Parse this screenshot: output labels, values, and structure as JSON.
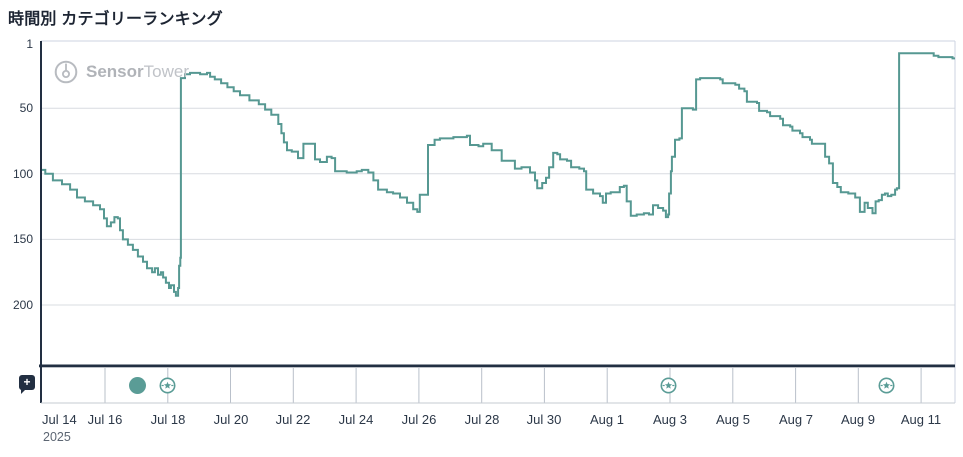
{
  "page": {
    "title": "時間別 カテゴリーランキング"
  },
  "watermark": {
    "brand_bold": "Sensor",
    "brand_regular": "Tower"
  },
  "colors": {
    "line": "#569892",
    "icon_teal": "#5a9c96",
    "axis_dark": "#222f42",
    "grid": "#d8dce1",
    "border_light": "#ccd3e0",
    "strip_tick": "#b9c0ca",
    "strip_bottom": "#c6cbd2",
    "label_dark": "#2c3848",
    "label_muted": "#5d6673",
    "watermark_gray": "#b4b7bc"
  },
  "y_axis": {
    "ticks": [
      {
        "label": "1",
        "rank": 1
      },
      {
        "label": "50",
        "rank": 50
      },
      {
        "label": "100",
        "rank": 100
      },
      {
        "label": "150",
        "rank": 150
      },
      {
        "label": "200",
        "rank": 200
      }
    ]
  },
  "x_axis": {
    "year": "2025",
    "ticks": [
      {
        "label": "Jul 14",
        "day": 0
      },
      {
        "label": "Jul 16",
        "day": 2
      },
      {
        "label": "Jul 18",
        "day": 4
      },
      {
        "label": "Jul 20",
        "day": 6
      },
      {
        "label": "Jul 22",
        "day": 8
      },
      {
        "label": "Jul 24",
        "day": 10
      },
      {
        "label": "Jul 26",
        "day": 12
      },
      {
        "label": "Jul 28",
        "day": 14
      },
      {
        "label": "Jul 30",
        "day": 16
      },
      {
        "label": "Aug 1",
        "day": 18
      },
      {
        "label": "Aug 3",
        "day": 20
      },
      {
        "label": "Aug 5",
        "day": 22
      },
      {
        "label": "Aug 7",
        "day": 24
      },
      {
        "label": "Aug 9",
        "day": 26
      },
      {
        "label": "Aug 11",
        "day": 28
      }
    ]
  },
  "timeline": {
    "note_button_glyph": "+",
    "events": [
      {
        "type": "dot",
        "icon": "event-dot-icon",
        "day": 3.02
      },
      {
        "type": "badge",
        "icon": "featured-star-badge-icon",
        "day": 4.0
      },
      {
        "type": "badge",
        "icon": "featured-star-badge-icon",
        "day": 19.95
      },
      {
        "type": "badge",
        "icon": "featured-star-badge-icon",
        "day": 26.9
      }
    ]
  },
  "chart_data": {
    "type": "line",
    "title": "時間別 カテゴリーランキング",
    "x_unit": "days since Jul 14, 2025 (hourly category ranking)",
    "x_range": [
      -0.04,
      29.08
    ],
    "y_inverted": true,
    "y_ticks": [
      1,
      50,
      100,
      150,
      200
    ],
    "y_range_visible": [
      1,
      246
    ],
    "grid": "horizontal-only",
    "legend": "none",
    "points": [
      [
        -0.04,
        97
      ],
      [
        0.1,
        100
      ],
      [
        0.34,
        105
      ],
      [
        0.63,
        108
      ],
      [
        0.89,
        112
      ],
      [
        1.11,
        118
      ],
      [
        1.36,
        121
      ],
      [
        1.62,
        124
      ],
      [
        1.84,
        127
      ],
      [
        1.97,
        134
      ],
      [
        2.06,
        140
      ],
      [
        2.19,
        137
      ],
      [
        2.3,
        133
      ],
      [
        2.41,
        134
      ],
      [
        2.48,
        143
      ],
      [
        2.57,
        150
      ],
      [
        2.73,
        154
      ],
      [
        2.89,
        158
      ],
      [
        3.05,
        163
      ],
      [
        3.21,
        167
      ],
      [
        3.34,
        172
      ],
      [
        3.5,
        175
      ],
      [
        3.59,
        172
      ],
      [
        3.69,
        177
      ],
      [
        3.78,
        175
      ],
      [
        3.85,
        179
      ],
      [
        3.94,
        183
      ],
      [
        4.04,
        187
      ],
      [
        4.1,
        185
      ],
      [
        4.2,
        190
      ],
      [
        4.26,
        193
      ],
      [
        4.33,
        187
      ],
      [
        4.36,
        170
      ],
      [
        4.4,
        164
      ],
      [
        4.42,
        27
      ],
      [
        4.55,
        24
      ],
      [
        4.71,
        23
      ],
      [
        5.03,
        24
      ],
      [
        5.25,
        23
      ],
      [
        5.35,
        26
      ],
      [
        5.5,
        28
      ],
      [
        5.7,
        31
      ],
      [
        5.9,
        34
      ],
      [
        6.1,
        37
      ],
      [
        6.3,
        40
      ],
      [
        6.6,
        44
      ],
      [
        6.9,
        47
      ],
      [
        7.1,
        51
      ],
      [
        7.3,
        55
      ],
      [
        7.52,
        62
      ],
      [
        7.62,
        69
      ],
      [
        7.7,
        76
      ],
      [
        7.8,
        82
      ],
      [
        7.95,
        83
      ],
      [
        8.15,
        88
      ],
      [
        8.32,
        77
      ],
      [
        8.59,
        77
      ],
      [
        8.69,
        89
      ],
      [
        8.85,
        91
      ],
      [
        9.07,
        87
      ],
      [
        9.22,
        88
      ],
      [
        9.33,
        98
      ],
      [
        9.7,
        99
      ],
      [
        10.02,
        98
      ],
      [
        10.18,
        97
      ],
      [
        10.39,
        99
      ],
      [
        10.55,
        105
      ],
      [
        10.7,
        112
      ],
      [
        10.98,
        114
      ],
      [
        11.18,
        115
      ],
      [
        11.4,
        118
      ],
      [
        11.62,
        122
      ],
      [
        11.82,
        127
      ],
      [
        11.95,
        129
      ],
      [
        12.03,
        116
      ],
      [
        12.2,
        116
      ],
      [
        12.29,
        78
      ],
      [
        12.5,
        74
      ],
      [
        12.67,
        73
      ],
      [
        13.1,
        72
      ],
      [
        13.53,
        71
      ],
      [
        13.63,
        78
      ],
      [
        13.9,
        79
      ],
      [
        14.05,
        77
      ],
      [
        14.32,
        82
      ],
      [
        14.64,
        90
      ],
      [
        15.06,
        96
      ],
      [
        15.27,
        95
      ],
      [
        15.54,
        99
      ],
      [
        15.7,
        105
      ],
      [
        15.77,
        111
      ],
      [
        15.93,
        107
      ],
      [
        16.05,
        103
      ],
      [
        16.15,
        95
      ],
      [
        16.28,
        84
      ],
      [
        16.41,
        85
      ],
      [
        16.5,
        89
      ],
      [
        16.72,
        90
      ],
      [
        16.85,
        95
      ],
      [
        17.11,
        96
      ],
      [
        17.26,
        98
      ],
      [
        17.33,
        112
      ],
      [
        17.55,
        115
      ],
      [
        17.77,
        117
      ],
      [
        17.86,
        122
      ],
      [
        17.96,
        115
      ],
      [
        18.11,
        114
      ],
      [
        18.4,
        110
      ],
      [
        18.53,
        109
      ],
      [
        18.62,
        121
      ],
      [
        18.75,
        132
      ],
      [
        18.94,
        131
      ],
      [
        19.17,
        130
      ],
      [
        19.33,
        131
      ],
      [
        19.46,
        124
      ],
      [
        19.62,
        126
      ],
      [
        19.78,
        128
      ],
      [
        19.87,
        133
      ],
      [
        19.94,
        131
      ],
      [
        19.97,
        115
      ],
      [
        20.03,
        98
      ],
      [
        20.06,
        87
      ],
      [
        20.16,
        74
      ],
      [
        20.3,
        73
      ],
      [
        20.38,
        50
      ],
      [
        20.54,
        50
      ],
      [
        20.73,
        51
      ],
      [
        20.83,
        28
      ],
      [
        20.96,
        27
      ],
      [
        21.28,
        27
      ],
      [
        21.6,
        28
      ],
      [
        21.68,
        31
      ],
      [
        22.08,
        32
      ],
      [
        22.2,
        35
      ],
      [
        22.37,
        37
      ],
      [
        22.45,
        45
      ],
      [
        22.77,
        46
      ],
      [
        22.84,
        52
      ],
      [
        23.09,
        53
      ],
      [
        23.19,
        56
      ],
      [
        23.51,
        58
      ],
      [
        23.6,
        63
      ],
      [
        23.83,
        64
      ],
      [
        23.9,
        67
      ],
      [
        24.14,
        69
      ],
      [
        24.22,
        72
      ],
      [
        24.46,
        74
      ],
      [
        24.52,
        77
      ],
      [
        24.78,
        77
      ],
      [
        24.94,
        87
      ],
      [
        25.07,
        92
      ],
      [
        25.19,
        107
      ],
      [
        25.33,
        110
      ],
      [
        25.44,
        114
      ],
      [
        25.68,
        115
      ],
      [
        25.9,
        118
      ],
      [
        26.05,
        129
      ],
      [
        26.2,
        122
      ],
      [
        26.3,
        126
      ],
      [
        26.45,
        130
      ],
      [
        26.55,
        121
      ],
      [
        26.65,
        120
      ],
      [
        26.75,
        116
      ],
      [
        26.85,
        115
      ],
      [
        26.94,
        117
      ],
      [
        27.05,
        116
      ],
      [
        27.17,
        112
      ],
      [
        27.23,
        111
      ],
      [
        27.3,
        8
      ],
      [
        27.6,
        8
      ],
      [
        28.1,
        8
      ],
      [
        28.35,
        8
      ],
      [
        28.4,
        10
      ],
      [
        28.55,
        11
      ],
      [
        28.8,
        11
      ],
      [
        29.0,
        12
      ],
      [
        29.08,
        12
      ]
    ]
  }
}
